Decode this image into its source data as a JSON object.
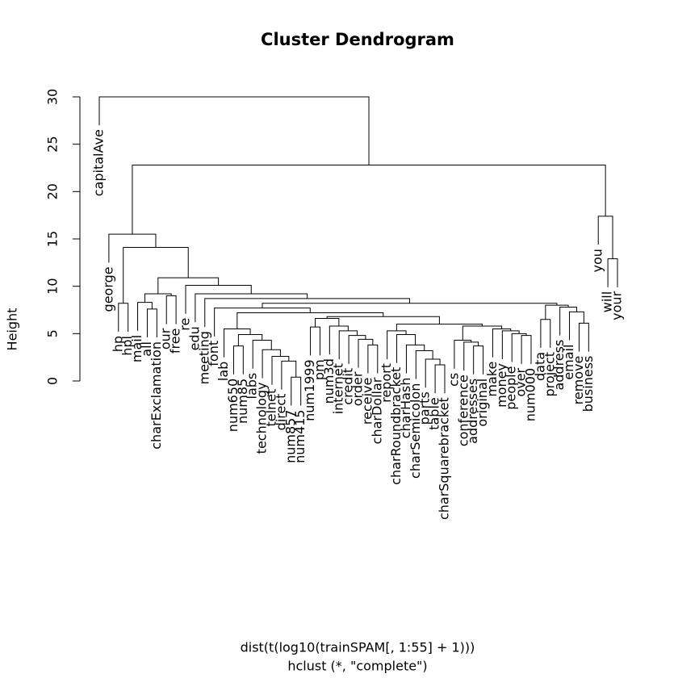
{
  "chart_data": {
    "type": "dendrogram",
    "title": "Cluster Dendrogram",
    "xlabel": "dist(t(log10(trainSPAM[, 1:55] + 1)))",
    "sub": "hclust (*, \"complete\")",
    "ylabel": "Height",
    "ylim": [
      0,
      30
    ],
    "yticks": [
      0,
      5,
      10,
      15,
      20,
      25,
      30
    ],
    "leaves": [
      "capitalAve",
      "george",
      "hp",
      "hpl",
      "mail",
      "all",
      "charExclamation",
      "our",
      "free",
      "re",
      "edu",
      "meeting",
      "font",
      "lab",
      "num650",
      "num85",
      "labs",
      "technology",
      "telnet",
      "direct",
      "num857",
      "num415",
      "num1999",
      "pm",
      "num3d",
      "internet",
      "credit",
      "order",
      "receive",
      "charDollar",
      "report",
      "charRoundbracket",
      "charHash",
      "charSemicolon",
      "parts",
      "table",
      "charSquarebracket",
      "cs",
      "conference",
      "addresses",
      "original",
      "make",
      "money",
      "people",
      "over",
      "num000",
      "data",
      "project",
      "address",
      "email",
      "remove",
      "business",
      "you",
      "will",
      "your"
    ],
    "merge": [
      [
        -21,
        -22
      ],
      [
        -20,
        1
      ],
      [
        -19,
        2
      ],
      [
        -18,
        3
      ],
      [
        -17,
        4
      ],
      [
        -15,
        -16
      ],
      [
        6,
        5
      ],
      [
        -14,
        7
      ],
      [
        -29,
        -30
      ],
      [
        -28,
        9
      ],
      [
        -27,
        10
      ],
      [
        -26,
        11
      ],
      [
        -25,
        12
      ],
      [
        -23,
        -24
      ],
      [
        14,
        13
      ],
      [
        -36,
        -37
      ],
      [
        -35,
        16
      ],
      [
        -34,
        17
      ],
      [
        -33,
        18
      ],
      [
        -32,
        19
      ],
      [
        -31,
        20
      ],
      [
        -40,
        -41
      ],
      [
        -39,
        22
      ],
      [
        -38,
        23
      ],
      [
        -45,
        -46
      ],
      [
        -44,
        25
      ],
      [
        -43,
        26
      ],
      [
        -42,
        27
      ],
      [
        24,
        28
      ],
      [
        21,
        29
      ],
      [
        15,
        30
      ],
      [
        8,
        31
      ],
      [
        -13,
        32
      ],
      [
        -47,
        -48
      ],
      [
        -51,
        -52
      ],
      [
        -50,
        35
      ],
      [
        -49,
        36
      ],
      [
        34,
        37
      ],
      [
        33,
        38
      ],
      [
        -12,
        39
      ],
      [
        -11,
        40
      ],
      [
        -10,
        41
      ],
      [
        -6,
        -7
      ],
      [
        -5,
        43
      ],
      [
        -8,
        -9
      ],
      [
        44,
        45
      ],
      [
        46,
        42
      ],
      [
        -3,
        -4
      ],
      [
        48,
        47
      ],
      [
        -2,
        49
      ],
      [
        -54,
        -55
      ],
      [
        -53,
        51
      ],
      [
        50,
        52
      ],
      [
        -1,
        53
      ]
    ],
    "height": [
      0.4,
      2.1,
      2.6,
      3.3,
      4.3,
      3.7,
      4.9,
      5.5,
      3.8,
      4.4,
      4.8,
      5.3,
      5.8,
      5.7,
      6.6,
      1.7,
      2.3,
      3.2,
      3.8,
      4.9,
      5.3,
      3.7,
      4.1,
      4.3,
      4.8,
      5.0,
      5.3,
      5.5,
      5.8,
      6.0,
      6.8,
      7.2,
      7.7,
      6.5,
      6.1,
      7.3,
      7.8,
      8.0,
      8.2,
      8.7,
      9.2,
      10.1,
      7.6,
      8.3,
      9.0,
      9.2,
      10.9,
      8.2,
      14.1,
      15.5,
      12.9,
      17.4,
      22.8,
      30.0
    ]
  }
}
